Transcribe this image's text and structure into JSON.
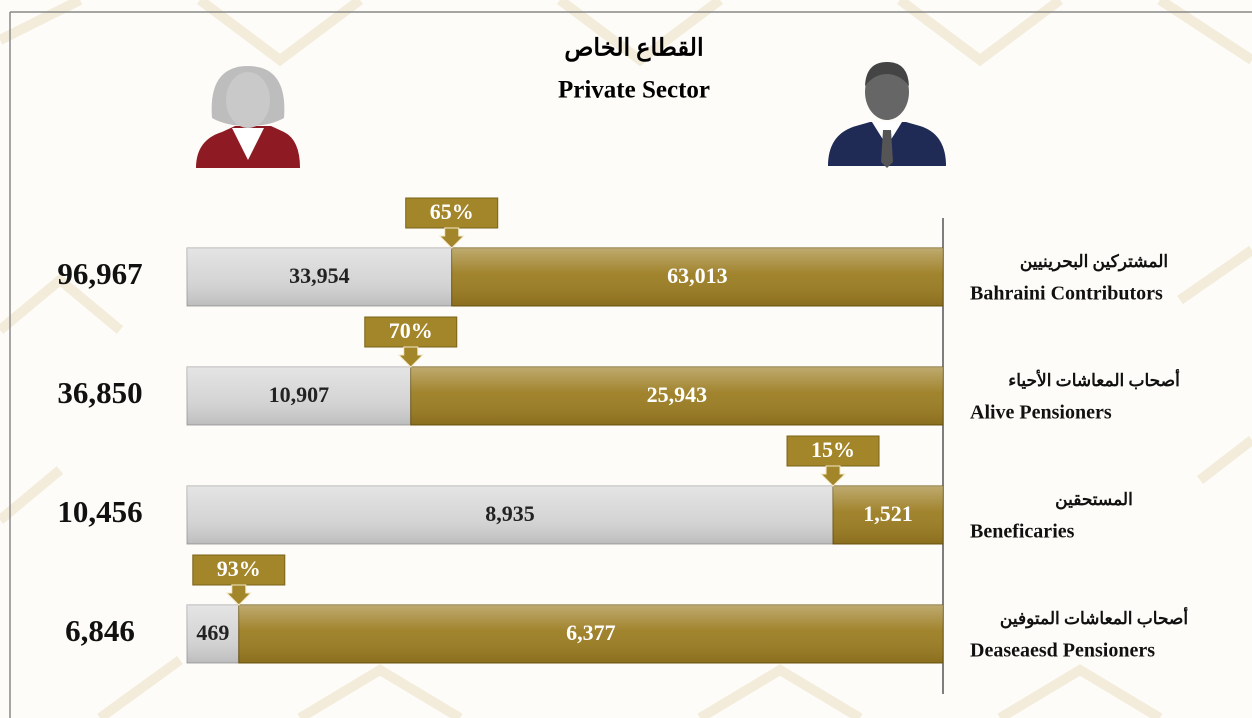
{
  "chart_data": {
    "type": "bar",
    "orientation": "horizontal",
    "stacked": true,
    "title_ar": "القطاع الخاص",
    "title": "Private Sector",
    "categories_ar": [
      "المشتركين البحرينيين",
      "أصحاب المعاشات الأحياء",
      "المستحقين",
      "أصحاب المعاشات المتوفين"
    ],
    "categories": [
      "Bahraini Contributors",
      "Alive Pensioners",
      "Beneficaries",
      "Deaseaesd Pensioners"
    ],
    "series": [
      {
        "color": "#d6d6d6",
        "values": [
          33954,
          10907,
          8935,
          469
        ],
        "value_labels": [
          "33,954",
          "10,907",
          "8,935",
          "469"
        ]
      },
      {
        "color": "#9c7d22",
        "values": [
          63013,
          25943,
          1521,
          6377
        ],
        "value_labels": [
          "63,013",
          "25,943",
          "1,521",
          "6,377"
        ]
      }
    ],
    "totals": {
      "values": [
        96967,
        36850,
        10456,
        6846
      ],
      "value_labels": [
        "96,967",
        "36,850",
        "10,456",
        "6,846"
      ]
    },
    "percentages": {
      "values": [
        65,
        70,
        15,
        93
      ],
      "value_labels": [
        "65%",
        "70%",
        "15%",
        "93%"
      ]
    }
  }
}
